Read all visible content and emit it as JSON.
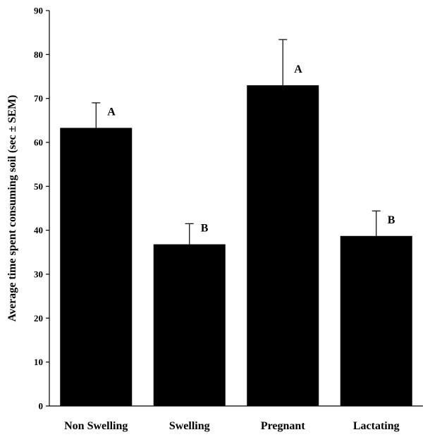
{
  "chart_data": {
    "type": "bar",
    "title": "",
    "xlabel": "",
    "ylabel": "Average time spent consuming soil (sec ± SEM)",
    "ylim": [
      0,
      90
    ],
    "yticks": [
      0,
      10,
      20,
      30,
      40,
      50,
      60,
      70,
      80,
      90
    ],
    "categories": [
      "Non Swelling",
      "Swelling",
      "Pregnant",
      "Lactating"
    ],
    "values": [
      63.3,
      36.8,
      73.0,
      38.7
    ],
    "errors": [
      5.7,
      4.7,
      10.4,
      5.7
    ],
    "significance": [
      "A",
      "B",
      "A",
      "B"
    ],
    "grid": false,
    "bar_color": "#000000"
  }
}
